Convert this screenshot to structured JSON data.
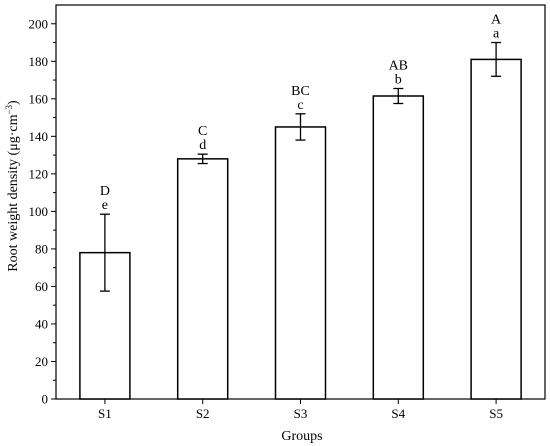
{
  "chart_data": {
    "type": "bar",
    "xlabel": "Groups",
    "ylabel": "Root weight density (μg·cm",
    "ylabel_sup": "−3",
    "ylabel_tail": ")",
    "categories": [
      "S1",
      "S2",
      "S3",
      "S4",
      "S5"
    ],
    "values": [
      78,
      128,
      145,
      161.5,
      181
    ],
    "errors": [
      20.5,
      2.5,
      7,
      4,
      9
    ],
    "letters_upper": [
      "D",
      "C",
      "BC",
      "AB",
      "A"
    ],
    "letters_lower": [
      "e",
      "d",
      "c",
      "b",
      "a"
    ],
    "ylim": [
      0,
      210
    ],
    "yticks": [
      0,
      20,
      40,
      60,
      80,
      100,
      120,
      140,
      160,
      180,
      200
    ],
    "grid": false,
    "bar_fill": "#ffffff",
    "bar_stroke": "#000000"
  }
}
